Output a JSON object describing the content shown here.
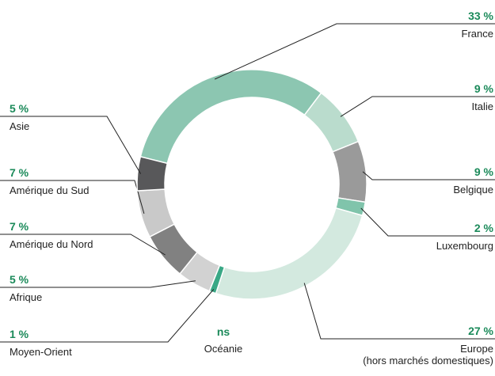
{
  "chart_data": {
    "type": "donut",
    "categories": [
      "France",
      "Italie",
      "Belgique",
      "Luxembourg",
      "Europe\n(hors marchés domestiques)",
      "Océanie",
      "Moyen-Orient",
      "Afrique",
      "Amérique du Nord",
      "Amérique du Sud",
      "Asie"
    ],
    "values": [
      33,
      9,
      9,
      2,
      27,
      null,
      1,
      5,
      7,
      7,
      5
    ],
    "value_labels": [
      "33 %",
      "9 %",
      "9 %",
      "2 %",
      "27 %",
      "ns",
      "1 %",
      "5 %",
      "7 %",
      "7 %",
      "5 %"
    ],
    "colors": [
      "#8cc6b1",
      "#badccd",
      "#9a9a9a",
      "#80c4ab",
      "#d3e9df",
      "#3aa886",
      "#3aa886",
      "#d2d2d2",
      "#818181",
      "#c9c9c9",
      "#58585a"
    ]
  }
}
